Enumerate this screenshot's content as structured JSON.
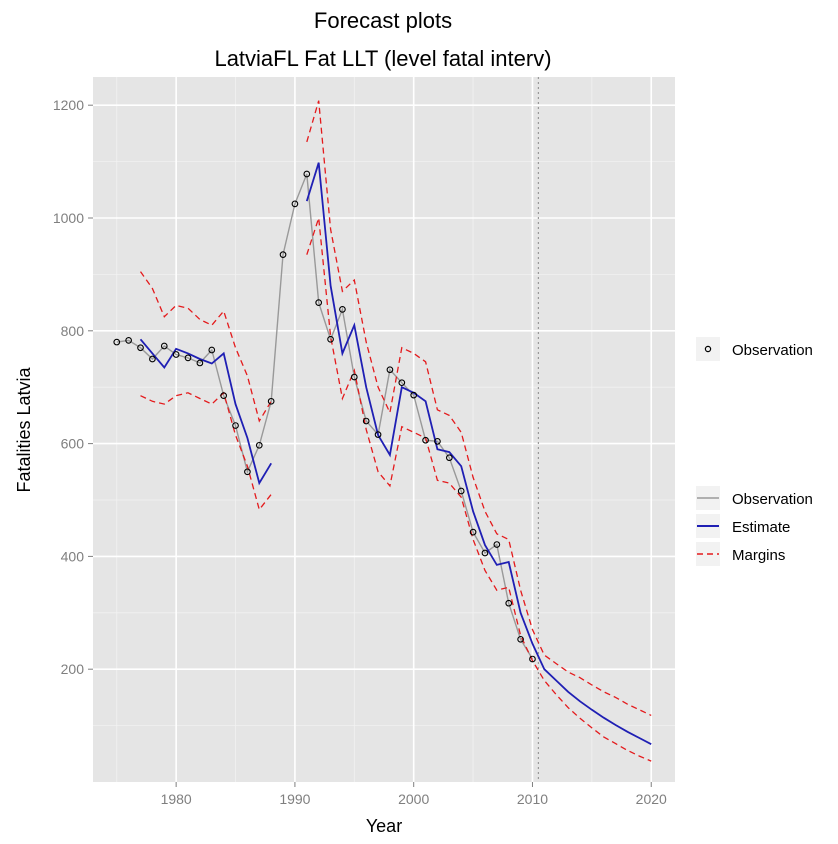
{
  "chart_data": {
    "type": "line",
    "title": "Forecast plots",
    "subtitle": "LatviaFL Fat LLT (level fatal interv)",
    "xlabel": "Year",
    "ylabel": "Fatalities Latvia",
    "xlim": [
      1973,
      2022
    ],
    "ylim": [
      0,
      1250
    ],
    "x_ticks": [
      1980,
      1990,
      2000,
      2010,
      2020
    ],
    "y_ticks": [
      200,
      400,
      600,
      800,
      1000,
      1200
    ],
    "grid": true,
    "vline": 2010.5,
    "legend_points": {
      "label": "Observation"
    },
    "legend_lines": [
      {
        "label": "Observation",
        "color": "#999999",
        "dash": "solid"
      },
      {
        "label": "Estimate",
        "color": "#1f1fb4",
        "dash": "solid"
      },
      {
        "label": "Margins",
        "color": "#e41a1c",
        "dash": "dashed"
      }
    ],
    "observations": {
      "x": [
        1975,
        1976,
        1977,
        1978,
        1979,
        1980,
        1981,
        1982,
        1983,
        1984,
        1985,
        1986,
        1987,
        1988,
        1989,
        1990,
        1991,
        1992,
        1993,
        1994,
        1995,
        1996,
        1997,
        1998,
        1999,
        2000,
        2001,
        2002,
        2003,
        2004,
        2005,
        2006,
        2007,
        2008,
        2009,
        2010
      ],
      "y": [
        780,
        783,
        770,
        750,
        773,
        758,
        752,
        743,
        766,
        685,
        632,
        550,
        597,
        675,
        935,
        1025,
        1078,
        850,
        785,
        838,
        718,
        640,
        616,
        731,
        708,
        686,
        606,
        604,
        575,
        516,
        443,
        406,
        421,
        317,
        253,
        218
      ]
    },
    "estimate_segments": [
      {
        "x": [
          1977,
          1978,
          1979,
          1980,
          1981,
          1982,
          1983,
          1984,
          1985,
          1986,
          1987,
          1988
        ],
        "y": [
          785,
          760,
          735,
          768,
          760,
          750,
          742,
          760,
          670,
          610,
          530,
          565
        ]
      },
      {
        "x": [
          1991,
          1992,
          1993,
          1994,
          1995,
          1996,
          1997,
          1998,
          1999,
          2000,
          2001,
          2002,
          2003,
          2004,
          2005,
          2006,
          2007,
          2008,
          2009,
          2010,
          2011,
          2012,
          2013,
          2014,
          2015,
          2016,
          2017,
          2018,
          2019,
          2020
        ],
        "y": [
          1030,
          1098,
          880,
          760,
          810,
          700,
          615,
          580,
          700,
          690,
          675,
          590,
          585,
          560,
          480,
          420,
          385,
          390,
          300,
          245,
          200,
          180,
          160,
          143,
          128,
          114,
          101,
          89,
          78,
          67
        ]
      }
    ],
    "margin_upper_segments": [
      {
        "x": [
          1977,
          1978,
          1979,
          1980,
          1981,
          1982,
          1983,
          1984,
          1985,
          1986,
          1987,
          1988
        ],
        "y": [
          905,
          875,
          825,
          845,
          840,
          820,
          810,
          835,
          770,
          720,
          640,
          675
        ]
      },
      {
        "x": [
          1991,
          1992,
          1993,
          1994,
          1995,
          1996,
          1997,
          1998,
          1999,
          2000,
          2001,
          2002,
          2003,
          2004,
          2005,
          2006,
          2007,
          2008,
          2009,
          2010,
          2011,
          2012,
          2013,
          2014,
          2015,
          2016,
          2017,
          2018,
          2019,
          2020
        ],
        "y": [
          1135,
          1208,
          980,
          870,
          890,
          780,
          700,
          655,
          770,
          760,
          745,
          660,
          650,
          620,
          540,
          480,
          440,
          430,
          340,
          270,
          225,
          210,
          195,
          185,
          172,
          160,
          150,
          138,
          128,
          118
        ]
      }
    ],
    "margin_lower_segments": [
      {
        "x": [
          1977,
          1978,
          1979,
          1980,
          1981,
          1982,
          1983,
          1984,
          1985,
          1986,
          1987,
          1988
        ],
        "y": [
          685,
          675,
          670,
          685,
          690,
          680,
          670,
          690,
          615,
          560,
          483,
          510
        ]
      },
      {
        "x": [
          1991,
          1992,
          1993,
          1994,
          1995,
          1996,
          1997,
          1998,
          1999,
          2000,
          2001,
          2002,
          2003,
          2004,
          2005,
          2006,
          2007,
          2008,
          2009,
          2010,
          2011,
          2012,
          2013,
          2014,
          2015,
          2016,
          2017,
          2018,
          2019,
          2020
        ],
        "y": [
          935,
          1000,
          790,
          680,
          730,
          625,
          550,
          525,
          630,
          620,
          610,
          535,
          530,
          505,
          430,
          375,
          340,
          345,
          260,
          215,
          180,
          155,
          132,
          113,
          96,
          80,
          68,
          56,
          46,
          37
        ]
      }
    ]
  }
}
